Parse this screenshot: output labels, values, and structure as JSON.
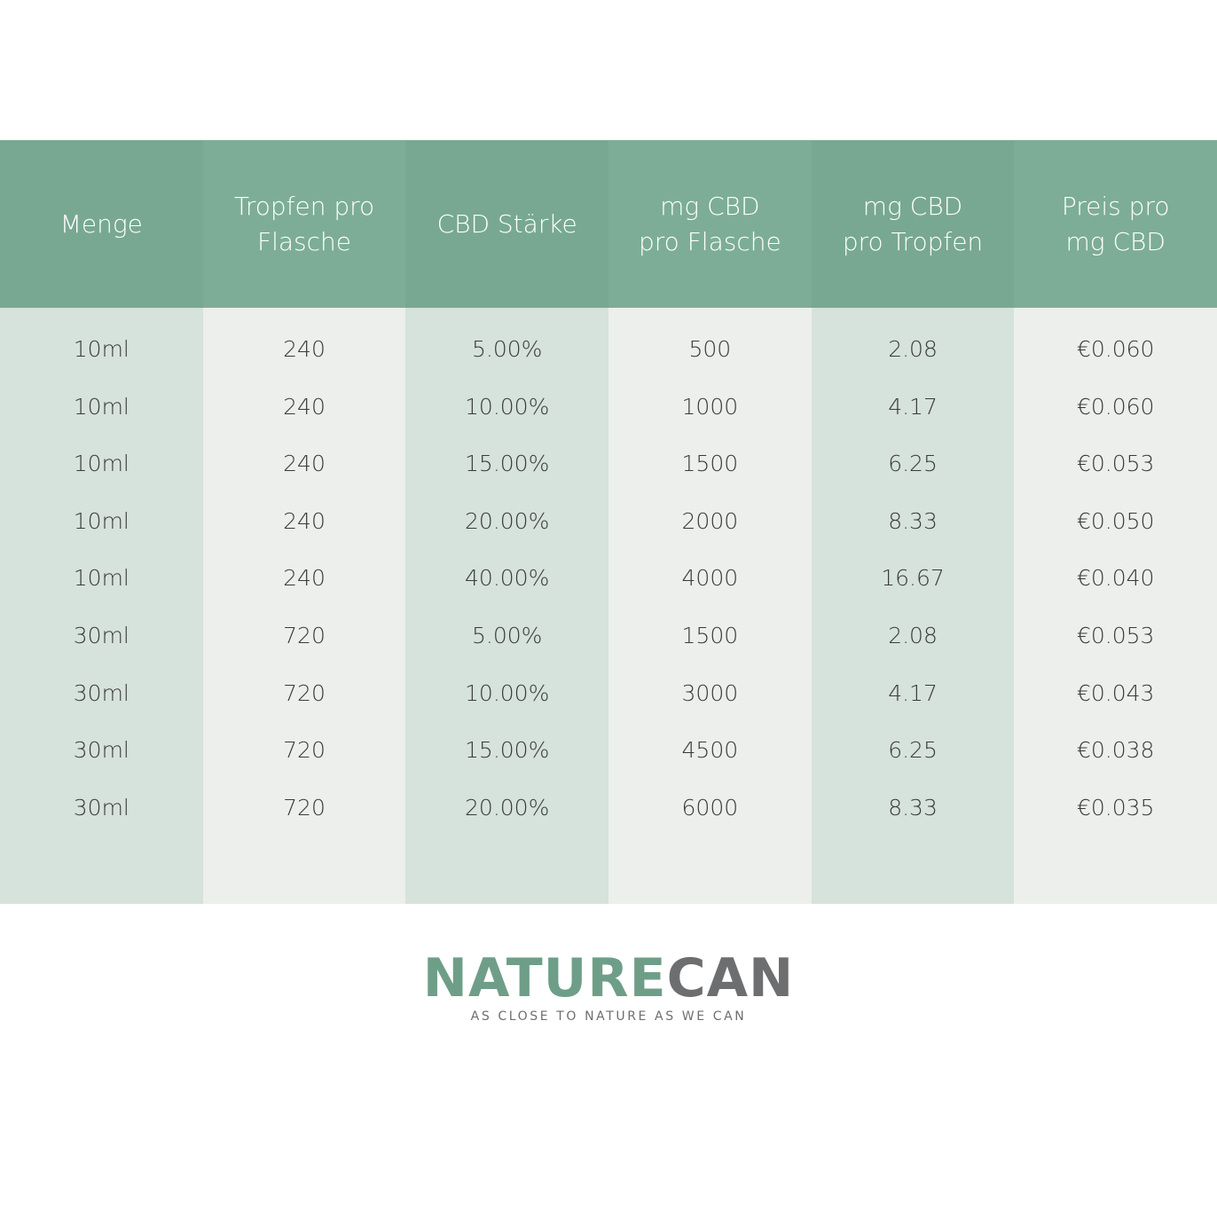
{
  "table": {
    "headers": [
      [
        "Menge"
      ],
      [
        "Tropfen pro",
        "Flasche"
      ],
      [
        "CBD Stärke"
      ],
      [
        "mg CBD",
        "pro Flasche"
      ],
      [
        "mg CBD",
        "pro Tropfen"
      ],
      [
        "Preis pro",
        "mg CBD"
      ]
    ],
    "rows": [
      [
        "10ml",
        "240",
        "5.00%",
        "500",
        "2.08",
        "€0.060"
      ],
      [
        "10ml",
        "240",
        "10.00%",
        "1000",
        "4.17",
        "€0.060"
      ],
      [
        "10ml",
        "240",
        "15.00%",
        "1500",
        "6.25",
        "€0.053"
      ],
      [
        "10ml",
        "240",
        "20.00%",
        "2000",
        "8.33",
        "€0.050"
      ],
      [
        "10ml",
        "240",
        "40.00%",
        "4000",
        "16.67",
        "€0.040"
      ],
      [
        "30ml",
        "720",
        "5.00%",
        "1500",
        "2.08",
        "€0.053"
      ],
      [
        "30ml",
        "720",
        "10.00%",
        "3000",
        "4.17",
        "€0.043"
      ],
      [
        "30ml",
        "720",
        "15.00%",
        "4500",
        "6.25",
        "€0.038"
      ],
      [
        "30ml",
        "720",
        "20.00%",
        "6000",
        "8.33",
        "€0.035"
      ]
    ]
  },
  "logo": {
    "brand_first": "NATURE",
    "brand_second": "CAN",
    "tagline": "AS CLOSE TO NATURE AS WE CAN"
  }
}
